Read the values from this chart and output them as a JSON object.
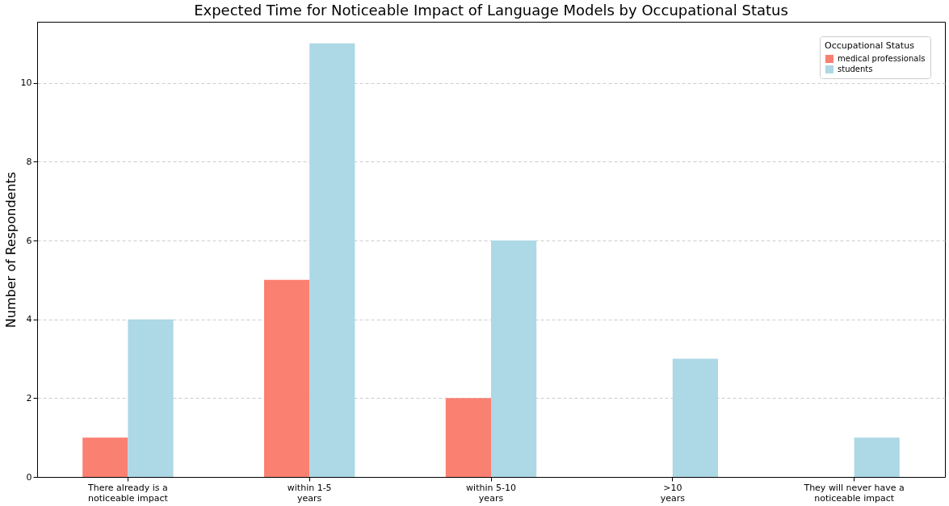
{
  "chart_data": {
    "type": "bar",
    "title": "Expected Time for Noticeable Impact of Language Models by Occupational Status",
    "ylabel": "Number of Respondents",
    "legend_title": "Occupational Status",
    "categories": [
      "There already is a\nnoticeable impact",
      "within 1-5\nyears",
      "within 5-10\nyears",
      ">10\nyears",
      "They will never have a\nnoticeable impact"
    ],
    "series": [
      {
        "name": "medical professionals",
        "color": "#fa8072",
        "values": [
          1,
          5,
          2,
          0,
          0
        ]
      },
      {
        "name": "students",
        "color": "#add8e6",
        "values": [
          4,
          11,
          6,
          3,
          1
        ]
      }
    ],
    "ylim": [
      0,
      11.55
    ],
    "yticks": [
      0,
      2,
      4,
      6,
      8,
      10
    ],
    "grid": "y",
    "legend": "top right"
  }
}
